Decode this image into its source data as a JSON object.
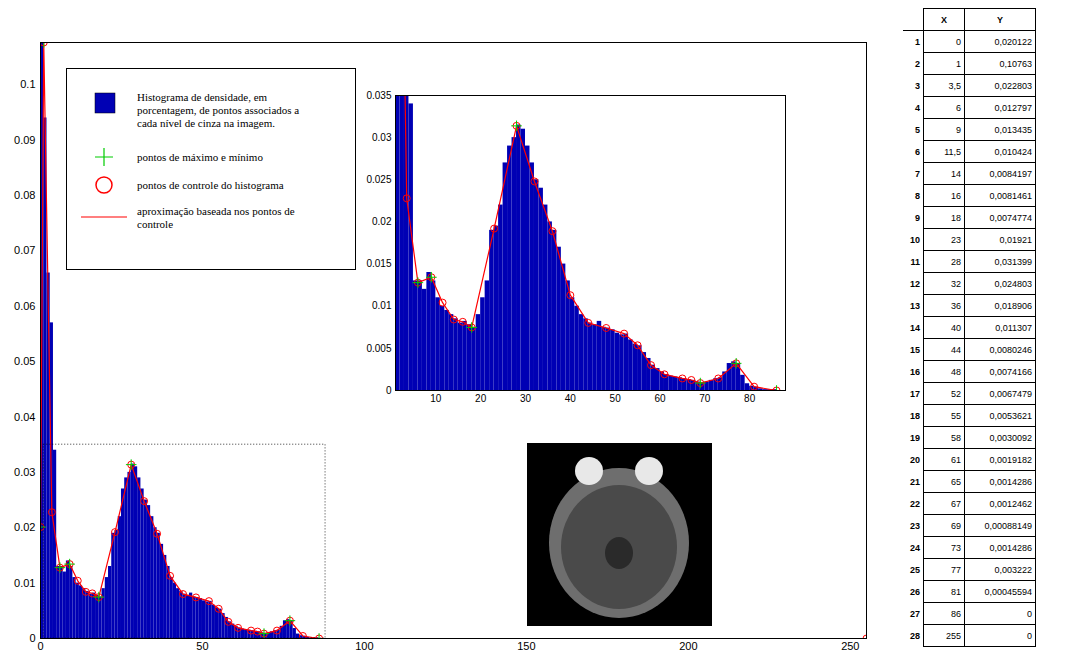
{
  "chart_data": {
    "type": "histogram",
    "xlim": [
      0,
      255
    ],
    "ylim": [
      0,
      0.10763
    ],
    "xticks": [
      0,
      50,
      100,
      150,
      200,
      250
    ],
    "yticks": [
      0,
      0.01,
      0.02,
      0.03,
      0.04,
      0.05,
      0.06,
      0.07,
      0.08,
      0.09,
      0.1
    ],
    "grid": false,
    "legend": "upper left",
    "series": [
      {
        "name": "Histograma de densidade, em porcentagem, de pontos associados a cada nível de cinza na imagem.",
        "type": "bar",
        "color": "#0000b4",
        "bins": [
          0,
          1,
          2,
          3,
          4,
          5,
          6,
          7,
          8,
          9,
          10,
          11,
          12,
          13,
          14,
          15,
          16,
          17,
          18,
          19,
          20,
          21,
          22,
          23,
          24,
          25,
          26,
          27,
          28,
          29,
          30,
          31,
          32,
          33,
          34,
          35,
          36,
          37,
          38,
          39,
          40,
          41,
          42,
          43,
          44,
          45,
          46,
          47,
          48,
          49,
          50,
          51,
          52,
          53,
          54,
          55,
          56,
          57,
          58,
          59,
          60,
          61,
          62,
          63,
          64,
          65,
          66,
          67,
          68,
          69,
          70,
          71,
          72,
          73,
          74,
          75,
          76,
          77,
          78,
          79,
          80,
          81,
          82,
          83,
          84,
          85,
          86
        ],
        "counts": [
          0.1076,
          0.094,
          0.066,
          0.057,
          0.034,
          0.013,
          0.013,
          0.012,
          0.014,
          0.013,
          0.011,
          0.01,
          0.0095,
          0.009,
          0.0085,
          0.008,
          0.0082,
          0.0078,
          0.0075,
          0.009,
          0.011,
          0.013,
          0.019,
          0.0195,
          0.022,
          0.027,
          0.029,
          0.03,
          0.0315,
          0.031,
          0.029,
          0.027,
          0.025,
          0.024,
          0.022,
          0.02,
          0.019,
          0.017,
          0.015,
          0.013,
          0.011,
          0.01,
          0.009,
          0.0085,
          0.008,
          0.0078,
          0.0082,
          0.0075,
          0.0074,
          0.0072,
          0.0068,
          0.0066,
          0.0067,
          0.006,
          0.0055,
          0.0053,
          0.0045,
          0.0038,
          0.003,
          0.0026,
          0.0022,
          0.0019,
          0.0017,
          0.0016,
          0.0015,
          0.0014,
          0.0013,
          0.0012,
          0.001,
          0.0009,
          0.001,
          0.0012,
          0.0014,
          0.0015,
          0.0022,
          0.0032,
          0.0034,
          0.0032,
          0.0018,
          0.0008,
          0.0005,
          0.0004,
          0.0002,
          0.0001,
          0.0001,
          0.0001
        ]
      },
      {
        "name": "pontos de máximo e mínimo",
        "type": "scatter",
        "marker": "plus",
        "color": "#00cc00",
        "x": [
          0,
          1,
          6,
          9,
          18,
          28,
          69,
          77,
          86,
          255
        ],
        "values": [
          0.020122,
          0.10763,
          0.012797,
          0.013435,
          0.0074774,
          0.031399,
          0.00088149,
          0.003222,
          0,
          0
        ]
      },
      {
        "name": "pontos de controle do histograma",
        "type": "scatter",
        "marker": "circle",
        "color": "#ff0000",
        "x": [
          0,
          1,
          3.5,
          6,
          9,
          11.5,
          14,
          16,
          18,
          23,
          28,
          32,
          36,
          40,
          44,
          48,
          52,
          55,
          58,
          61,
          65,
          67,
          69,
          73,
          77,
          81,
          86,
          255
        ],
        "values": [
          0.020122,
          0.10763,
          0.022803,
          0.012797,
          0.013435,
          0.010424,
          0.0084197,
          0.0081461,
          0.0074774,
          0.01921,
          0.031399,
          0.024803,
          0.018906,
          0.011307,
          0.0080246,
          0.0074166,
          0.0067479,
          0.0053621,
          0.0030092,
          0.0019182,
          0.0014286,
          0.0012462,
          0.00088149,
          0.0014286,
          0.003222,
          0.00045594,
          0,
          0
        ]
      },
      {
        "name": "aproximação baseada nos pontos de controle",
        "type": "line",
        "line_style": "solid",
        "color": "#ff0000",
        "x": [
          0,
          1,
          3.5,
          6,
          9,
          11.5,
          14,
          16,
          18,
          23,
          28,
          32,
          36,
          40,
          44,
          48,
          52,
          55,
          58,
          61,
          65,
          67,
          69,
          73,
          77,
          81,
          86,
          255
        ],
        "values": [
          0.020122,
          0.10763,
          0.022803,
          0.012797,
          0.013435,
          0.010424,
          0.0084197,
          0.0081461,
          0.0074774,
          0.01921,
          0.031399,
          0.024803,
          0.018906,
          0.011307,
          0.0080246,
          0.0074166,
          0.0067479,
          0.0053621,
          0.0030092,
          0.0019182,
          0.0014286,
          0.0012462,
          0.00088149,
          0.0014286,
          0.003222,
          0.00045594,
          0,
          0
        ]
      }
    ],
    "inset": {
      "xlim": [
        1,
        88
      ],
      "ylim": [
        0,
        0.035
      ],
      "xticks": [
        10,
        20,
        30,
        40,
        50,
        60,
        70,
        80
      ],
      "yticks": [
        0,
        0.005,
        0.01,
        0.015,
        0.02,
        0.025,
        0.03,
        0.035
      ]
    }
  },
  "table": {
    "columns": [
      "X",
      "Y"
    ],
    "rows": [
      [
        "1",
        "0",
        "0,020122"
      ],
      [
        "2",
        "1",
        "0,10763"
      ],
      [
        "3",
        "3,5",
        "0,022803"
      ],
      [
        "4",
        "6",
        "0,012797"
      ],
      [
        "5",
        "9",
        "0,013435"
      ],
      [
        "6",
        "11,5",
        "0,010424"
      ],
      [
        "7",
        "14",
        "0,0084197"
      ],
      [
        "8",
        "16",
        "0,0081461"
      ],
      [
        "9",
        "18",
        "0,0074774"
      ],
      [
        "10",
        "23",
        "0,01921"
      ],
      [
        "11",
        "28",
        "0,031399"
      ],
      [
        "12",
        "32",
        "0,024803"
      ],
      [
        "13",
        "36",
        "0,018906"
      ],
      [
        "14",
        "40",
        "0,011307"
      ],
      [
        "15",
        "44",
        "0,0080246"
      ],
      [
        "16",
        "48",
        "0,0074166"
      ],
      [
        "17",
        "52",
        "0,0067479"
      ],
      [
        "18",
        "55",
        "0,0053621"
      ],
      [
        "19",
        "58",
        "0,0030092"
      ],
      [
        "20",
        "61",
        "0,0019182"
      ],
      [
        "21",
        "65",
        "0,0014286"
      ],
      [
        "22",
        "67",
        "0,0012462"
      ],
      [
        "23",
        "69",
        "0,00088149"
      ],
      [
        "24",
        "73",
        "0,0014286"
      ],
      [
        "25",
        "77",
        "0,003222"
      ],
      [
        "26",
        "81",
        "0,00045594"
      ],
      [
        "27",
        "86",
        "0"
      ],
      [
        "28",
        "255",
        "0"
      ]
    ]
  }
}
